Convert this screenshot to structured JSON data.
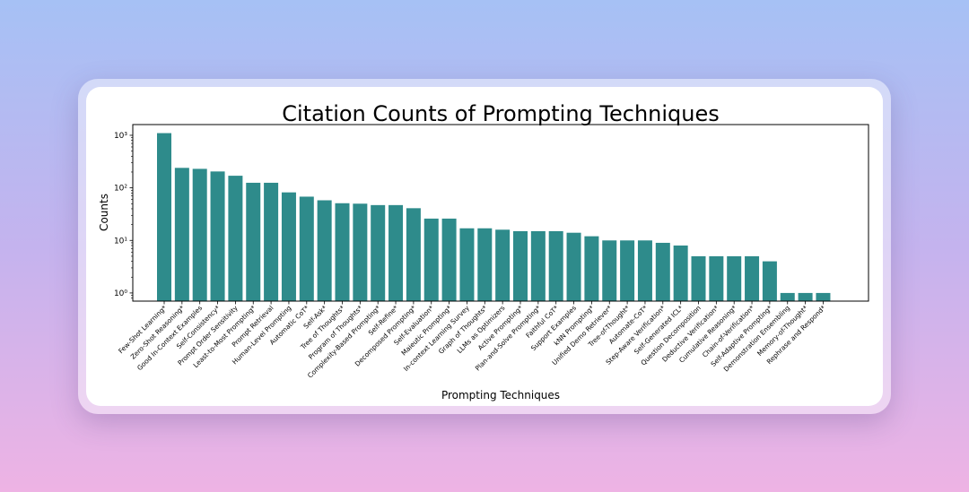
{
  "chart_data": {
    "type": "bar",
    "title": "Citation Counts of Prompting Techniques",
    "xlabel": "Prompting Techniques",
    "ylabel": "Counts",
    "yscale": "log",
    "ylim": [
      0.7,
      1600
    ],
    "yticks": [
      1,
      10,
      100,
      1000
    ],
    "ytick_labels": [
      "10⁰",
      "10¹",
      "10²",
      "10³"
    ],
    "bar_color": "#2e8b8b",
    "grid": false,
    "categories": [
      "Few-Shot Learning*",
      "Zero-Shot Reasoning*",
      "Good In-Context Examples",
      "Self-Consistency*",
      "Prompt Order Sensitivity",
      "Least-to-Most Prompting*",
      "Prompt Retrieval",
      "Human-Level Prompting",
      "Automatic CoT*",
      "Self-Ask*",
      "Tree of Thoughts*",
      "Program of Thoughts*",
      "Complexity-Based Prompting*",
      "Self-Refine*",
      "Decomposed Prompting*",
      "Self-Evaluation*",
      "Maieutic Prompting*",
      "In-context Learning Survey",
      "Graph of Thoughts*",
      "LLMs as Optimizers",
      "Active Prompting*",
      "Plan-and-Solve Prompting*",
      "Faithful CoT*",
      "Support Examples",
      "kNN Prompting*",
      "Unified Demo Retriever*",
      "Tree-of-Thought*",
      "Automate-CoT*",
      "Step-Aware Verification*",
      "Self-Generated ICL*",
      "Question Decomposition",
      "Deductive Verification*",
      "Cumulative Reasoning*",
      "Chain-of-Verification*",
      "Self-Adaptive Prompting*",
      "Demonstration Ensembling",
      "Memory-of-Thought*",
      "Rephrase and Respond*"
    ],
    "values": [
      1100,
      240,
      230,
      205,
      170,
      125,
      125,
      82,
      68,
      58,
      51,
      50,
      47,
      47,
      41,
      26,
      26,
      17,
      17,
      16,
      15,
      15,
      15,
      14,
      12,
      10,
      10,
      10,
      9,
      8,
      5,
      5,
      5,
      5,
      4,
      1,
      1,
      1
    ]
  }
}
